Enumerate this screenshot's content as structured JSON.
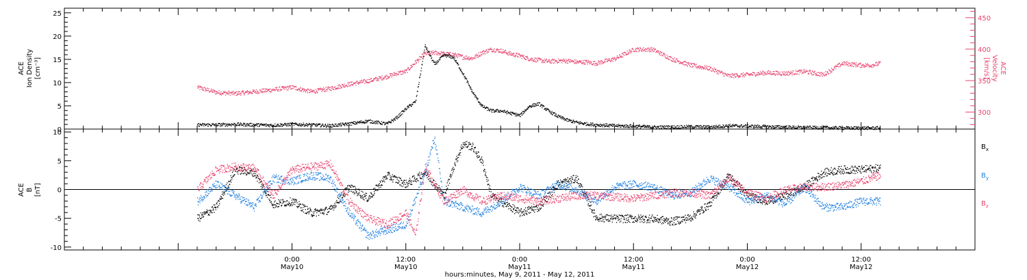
{
  "chart_data": {
    "type": "scatter",
    "xlabel": "hours:minutes, May  9, 2011 - May 12, 2011",
    "x_unit": "hours since 2011-05-09 00:00",
    "xlim": [
      0,
      96
    ],
    "x_ticks": [
      {
        "x": 24,
        "time": "0:00",
        "date": "May10"
      },
      {
        "x": 36,
        "time": "12:00",
        "date": "May10"
      },
      {
        "x": 48,
        "time": "0:00",
        "date": "May11"
      },
      {
        "x": 60,
        "time": "12:00",
        "date": "May11"
      },
      {
        "x": 72,
        "time": "0:00",
        "date": "May12"
      },
      {
        "x": 84,
        "time": "12:00",
        "date": "May12"
      }
    ],
    "panels": [
      {
        "id": "plasma",
        "ylabel": [
          "ACE",
          "Ion Density",
          "[cm⁻³]"
        ],
        "ylim": [
          0,
          26
        ],
        "yticks": [
          0,
          5,
          10,
          15,
          20,
          25
        ],
        "y2label": [
          "ACE",
          "Velocity",
          "[km/s]"
        ],
        "y2lim": [
          273,
          465
        ],
        "y2ticks": [
          300,
          350,
          400,
          450
        ],
        "y2color": "#e8426e",
        "series": [
          {
            "axis": "left",
            "color": "#000000",
            "x": [
              14,
              16,
              18,
              20,
              22,
              24,
              26,
              28,
              30,
              32,
              34,
              35,
              36,
              37,
              38,
              39,
              40,
              41,
              42,
              43,
              44,
              45,
              46,
              47,
              48,
              49,
              50,
              51,
              52,
              53,
              54,
              55,
              56,
              58,
              60,
              62,
              64,
              66,
              68,
              70,
              72,
              74,
              76,
              78,
              80,
              82,
              84,
              85,
              86
            ],
            "y": [
              1.0,
              1.0,
              1.1,
              1.0,
              0.9,
              1.1,
              1.0,
              0.8,
              1.2,
              1.8,
              1.2,
              2.5,
              4.5,
              6.0,
              18.0,
              14.0,
              16.0,
              15.5,
              12.0,
              8.0,
              5.0,
              4.0,
              4.0,
              3.5,
              3.0,
              5.0,
              5.5,
              4.0,
              2.8,
              2.0,
              1.5,
              1.2,
              1.0,
              0.8,
              0.7,
              0.5,
              0.5,
              0.6,
              0.5,
              0.8,
              0.7,
              0.6,
              0.5,
              0.4,
              0.4,
              0.3,
              0.3,
              0.3,
              0.3
            ]
          },
          {
            "axis": "right",
            "color": "#e8426e",
            "x": [
              14,
              16,
              18,
              20,
              22,
              24,
              26,
              28,
              30,
              32,
              34,
              35,
              36,
              37,
              38,
              39,
              40,
              41,
              42,
              43,
              44,
              45,
              46,
              47,
              48,
              49,
              50,
              51,
              52,
              53,
              54,
              55,
              56,
              58,
              60,
              62,
              64,
              66,
              68,
              70,
              72,
              74,
              76,
              78,
              80,
              82,
              84,
              85,
              86
            ],
            "y": [
              340,
              332,
              330,
              333,
              336,
              340,
              333,
              338,
              345,
              350,
              357,
              362,
              365,
              380,
              393,
              395,
              393,
              392,
              388,
              386,
              395,
              400,
              398,
              393,
              390,
              385,
              383,
              381,
              382,
              382,
              380,
              380,
              378,
              385,
              400,
              400,
              385,
              375,
              370,
              358,
              360,
              363,
              362,
              365,
              360,
              378,
              375,
              375,
              378
            ]
          }
        ]
      },
      {
        "id": "imf",
        "ylabel": [
          "ACE",
          "B",
          "[nT]"
        ],
        "ylim": [
          -10.5,
          10.5
        ],
        "yticks": [
          -10,
          -5,
          0,
          5,
          10
        ],
        "legend": [
          {
            "label": "B",
            "sub": "x",
            "color": "#000000"
          },
          {
            "label": "B",
            "sub": "y",
            "color": "#1f7fe0"
          },
          {
            "label": "B",
            "sub": "z",
            "color": "#e8426e"
          }
        ],
        "legend_placement": "right",
        "series": [
          {
            "name": "Bx",
            "color": "#000000",
            "x": [
              14,
              16,
              18,
              20,
              22,
              24,
              26,
              28,
              30,
              32,
              34,
              36,
              38,
              40,
              41,
              42,
              43,
              44,
              45,
              46,
              48,
              50,
              52,
              54,
              56,
              58,
              60,
              62,
              64,
              66,
              68,
              70,
              72,
              74,
              76,
              78,
              80,
              82,
              84,
              86
            ],
            "y": [
              -5.0,
              -3.0,
              3.5,
              3.0,
              -2.5,
              -2.0,
              -4.0,
              -3.5,
              0.5,
              -1.5,
              2.5,
              1.0,
              3.0,
              -1.0,
              4.0,
              8.0,
              7.5,
              5.0,
              -1.0,
              -2.0,
              -4.0,
              -3.0,
              1.0,
              2.0,
              -4.8,
              -5.0,
              -5.0,
              -5.0,
              -5.5,
              -4.8,
              -2.5,
              2.5,
              -1.0,
              -2.0,
              -1.0,
              0.5,
              3.0,
              3.5,
              3.5,
              3.8
            ]
          },
          {
            "name": "By",
            "color": "#1f7fe0",
            "x": [
              14,
              16,
              18,
              20,
              22,
              24,
              26,
              28,
              30,
              32,
              34,
              36,
              38,
              39,
              40,
              42,
              44,
              46,
              48,
              50,
              52,
              54,
              56,
              58,
              60,
              62,
              64,
              66,
              68,
              70,
              72,
              74,
              76,
              78,
              80,
              82,
              84,
              86
            ],
            "y": [
              -2.0,
              1.0,
              -1.0,
              -3.0,
              2.0,
              1.5,
              2.5,
              2.0,
              -4.0,
              -8.0,
              -7.0,
              -6.0,
              3.0,
              9.0,
              -2.0,
              -3.0,
              -4.0,
              -2.0,
              0.5,
              -1.0,
              1.0,
              0.0,
              -2.0,
              0.5,
              1.0,
              0.5,
              -1.0,
              -0.5,
              2.0,
              0.5,
              -2.0,
              -1.0,
              -2.5,
              0.5,
              -3.0,
              -3.0,
              -2.0,
              -2.0
            ]
          },
          {
            "name": "Bz",
            "color": "#e8426e",
            "x": [
              14,
              16,
              18,
              20,
              22,
              24,
              26,
              28,
              30,
              32,
              34,
              36,
              37,
              38,
              40,
              42,
              44,
              46,
              48,
              50,
              52,
              54,
              56,
              58,
              60,
              62,
              64,
              66,
              68,
              70,
              72,
              74,
              76,
              78,
              80,
              82,
              84,
              86
            ],
            "y": [
              0.0,
              3.5,
              4.0,
              3.8,
              -1.0,
              3.5,
              4.0,
              4.5,
              -2.0,
              -5.0,
              -6.0,
              -4.0,
              -8.0,
              4.0,
              -2.0,
              0.0,
              -2.0,
              -1.0,
              -1.5,
              -2.0,
              -1.5,
              -1.0,
              -1.0,
              -1.2,
              -1.5,
              -1.0,
              -0.5,
              -0.5,
              -1.0,
              2.0,
              -0.5,
              -1.5,
              0.0,
              0.5,
              0.5,
              0.8,
              1.5,
              2.5
            ]
          }
        ]
      }
    ]
  }
}
